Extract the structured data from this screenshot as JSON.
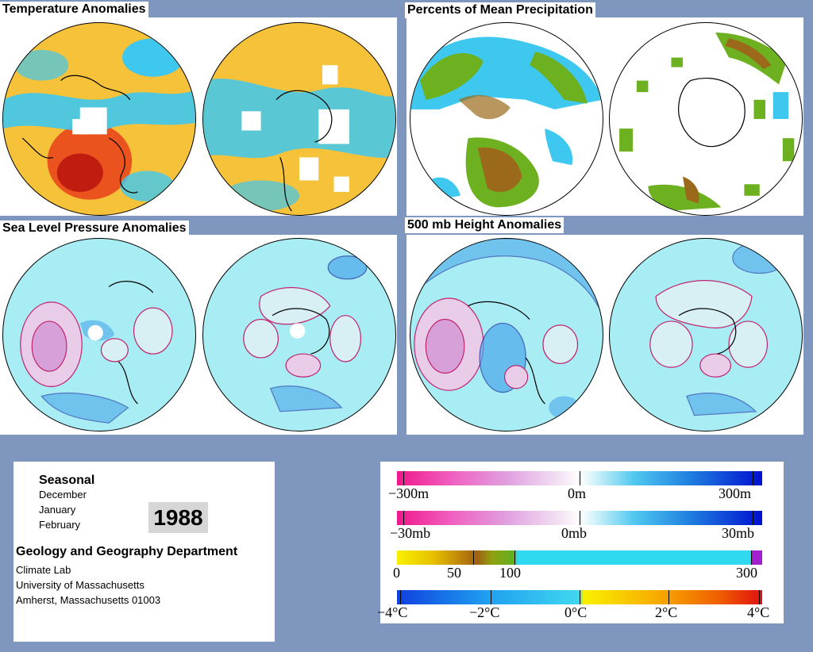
{
  "panels": {
    "temperature": {
      "title": "Temperature Anomalies"
    },
    "precipitation": {
      "title": "Percents of Mean Precipitation"
    },
    "pressure": {
      "title": "Sea Level Pressure Anomalies"
    },
    "height": {
      "title": "500 mb Height Anomalies"
    }
  },
  "info": {
    "season": "Seasonal",
    "months": [
      "December",
      "January",
      "February"
    ],
    "year": "1988",
    "department": "Geology and Geography Department",
    "address": [
      "Climate Lab",
      "University of Massachusetts",
      "Amherst, Massachusetts 01003"
    ]
  },
  "legend": {
    "height_labels": [
      "−300m",
      "0m",
      "300m"
    ],
    "pressure_labels": [
      "−30mb",
      "0mb",
      "30mb"
    ],
    "precip_labels": [
      "0",
      "50",
      "100",
      "300"
    ],
    "temp_labels": [
      "−4°C",
      "−2°C",
      "0°C",
      "2°C",
      "4°C"
    ]
  },
  "colors": {
    "background": "#7f97bf",
    "anomaly_warm": "#e8401a",
    "anomaly_cool": "#3ec8f0",
    "pressure_light": "#a8ecf4",
    "pressure_deep": "#4aa8e8",
    "contour_positive": "#c0246e",
    "contour_negative": "#1a2aa0"
  }
}
